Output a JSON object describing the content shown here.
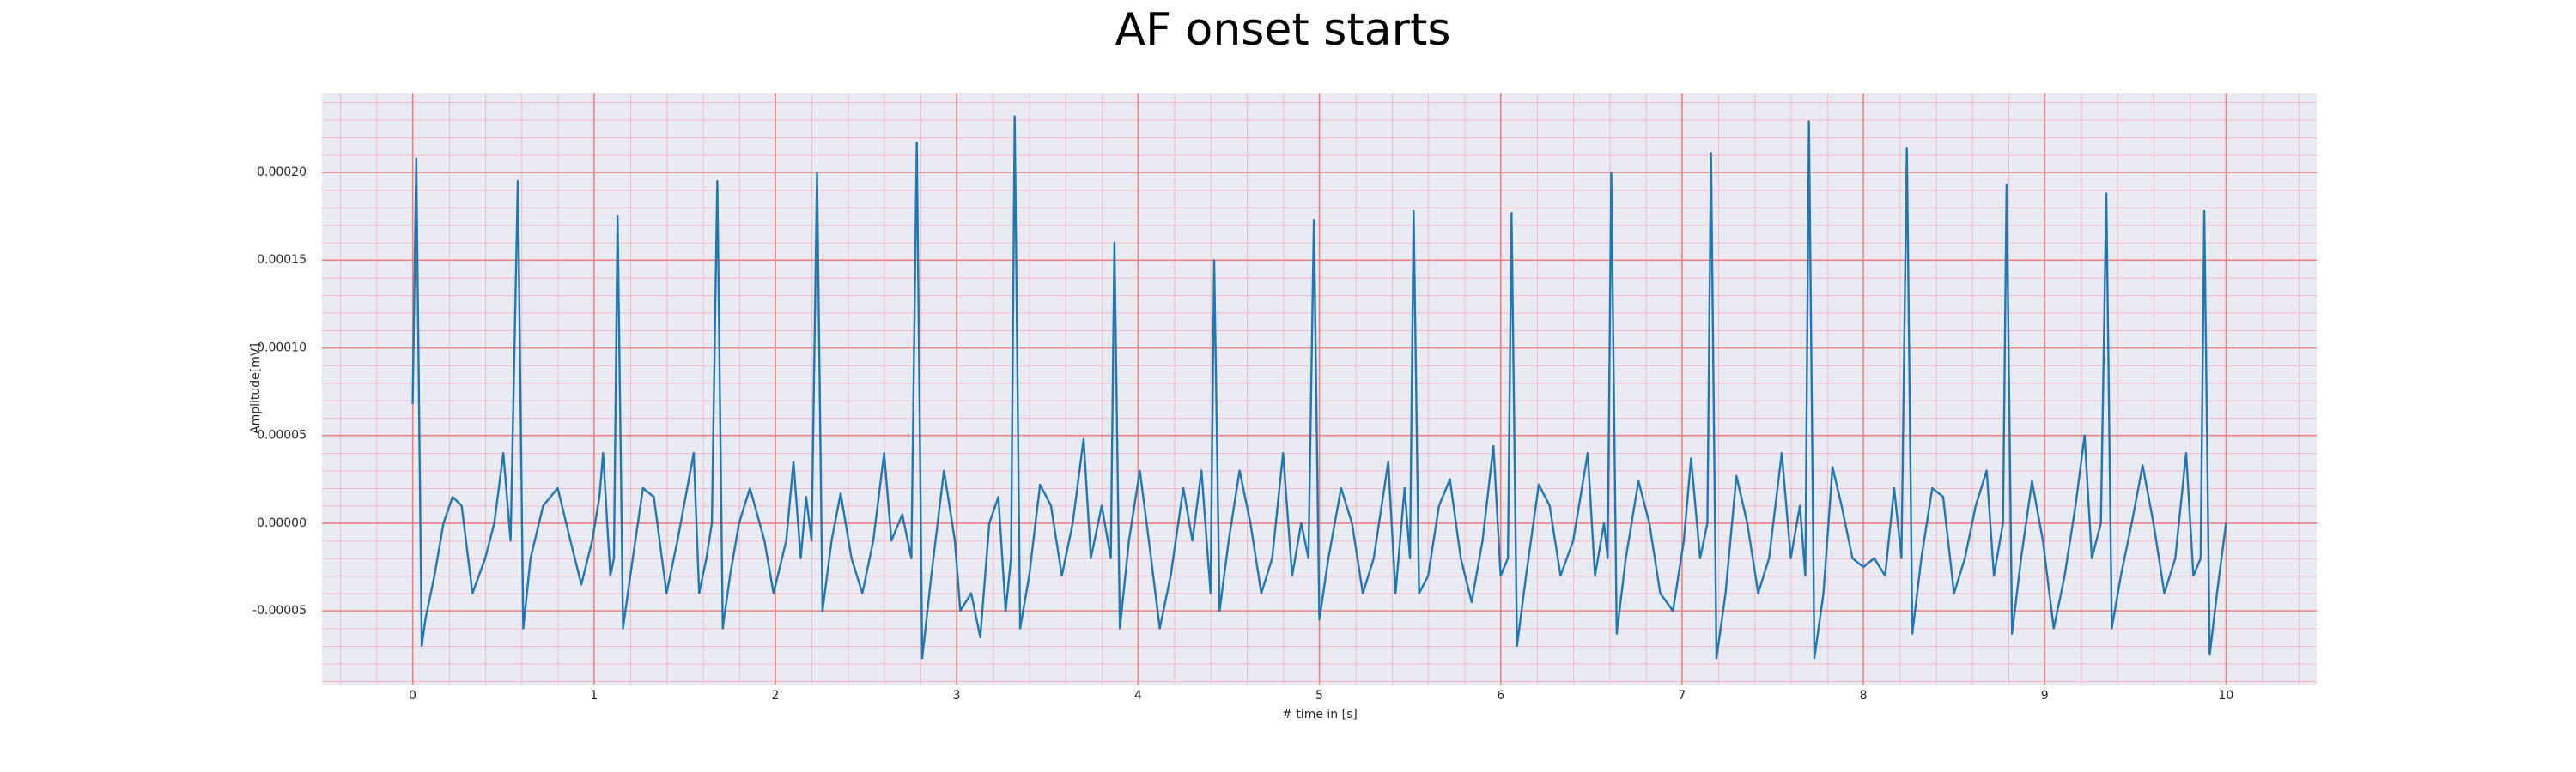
{
  "chart_data": {
    "type": "line",
    "title": "AF onset starts",
    "xlabel": "# time in [s]",
    "ylabel": "Amplitude[mV]",
    "color": "#1f77b4",
    "grid": true,
    "background": "#eaeaf2",
    "grid_color": "#f08080",
    "x": [
      0,
      0.02,
      0.05,
      0.07,
      0.12,
      0.17,
      0.22,
      0.27,
      0.33,
      0.4,
      0.45,
      0.5,
      0.54,
      0.58,
      0.61,
      0.65,
      0.72,
      0.8,
      0.87,
      0.93,
      0.99,
      1.03,
      1.05,
      1.09,
      1.11,
      1.13,
      1.16,
      1.2,
      1.27,
      1.33,
      1.4,
      1.46,
      1.55,
      1.58,
      1.62,
      1.65,
      1.68,
      1.71,
      1.75,
      1.8,
      1.86,
      1.94,
      1.99,
      2.06,
      2.1,
      2.14,
      2.17,
      2.2,
      2.23,
      2.26,
      2.31,
      2.36,
      2.42,
      2.48,
      2.54,
      2.6,
      2.64,
      2.7,
      2.75,
      2.78,
      2.81,
      2.86,
      2.93,
      2.99,
      3.02,
      3.08,
      3.13,
      3.18,
      3.23,
      3.27,
      3.3,
      3.32,
      3.35,
      3.4,
      3.46,
      3.52,
      3.58,
      3.64,
      3.7,
      3.74,
      3.8,
      3.85,
      3.87,
      3.9,
      3.95,
      4.01,
      4.06,
      4.12,
      4.18,
      4.25,
      4.3,
      4.35,
      4.4,
      4.42,
      4.45,
      4.5,
      4.56,
      4.62,
      4.68,
      4.74,
      4.8,
      4.85,
      4.9,
      4.94,
      4.97,
      5.0,
      5.05,
      5.12,
      5.18,
      5.24,
      5.3,
      5.38,
      5.42,
      5.47,
      5.5,
      5.52,
      5.55,
      5.6,
      5.66,
      5.72,
      5.78,
      5.84,
      5.9,
      5.96,
      6.0,
      6.04,
      6.06,
      6.09,
      6.14,
      6.21,
      6.27,
      6.33,
      6.4,
      6.48,
      6.52,
      6.57,
      6.59,
      6.61,
      6.64,
      6.69,
      6.76,
      6.82,
      6.88,
      6.95,
      7.01,
      7.05,
      7.1,
      7.14,
      7.16,
      7.19,
      7.24,
      7.3,
      7.36,
      7.42,
      7.48,
      7.55,
      7.6,
      7.65,
      7.68,
      7.7,
      7.73,
      7.78,
      7.83,
      7.88,
      7.94,
      8.0,
      8.06,
      8.12,
      8.17,
      8.21,
      8.24,
      8.27,
      8.32,
      8.38,
      8.44,
      8.5,
      8.56,
      8.62,
      8.68,
      8.72,
      8.77,
      8.79,
      8.82,
      8.87,
      8.93,
      8.99,
      9.05,
      9.11,
      9.17,
      9.22,
      9.26,
      9.31,
      9.34,
      9.37,
      9.42,
      9.48,
      9.54,
      9.6,
      9.66,
      9.72,
      9.78,
      9.82,
      9.86,
      9.88,
      9.91,
      9.95,
      10.0
    ],
    "values": [
      6.8e-05,
      0.000208,
      -7e-05,
      -5.5e-05,
      -3e-05,
      0.0,
      1.5e-05,
      1e-05,
      -4e-05,
      -2e-05,
      0.0,
      4e-05,
      -1e-05,
      0.000195,
      -6e-05,
      -2e-05,
      1e-05,
      2e-05,
      -1e-05,
      -3.5e-05,
      -1e-05,
      1.5e-05,
      4e-05,
      -3e-05,
      -2e-05,
      0.000175,
      -6e-05,
      -3e-05,
      2e-05,
      1.5e-05,
      -4e-05,
      -1e-05,
      4e-05,
      -4e-05,
      -2e-05,
      0.0,
      0.000195,
      -6e-05,
      -3e-05,
      0.0,
      2e-05,
      -1e-05,
      -4e-05,
      -1e-05,
      3.5e-05,
      -2e-05,
      1.5e-05,
      -1e-05,
      0.0002,
      -5e-05,
      -1e-05,
      1.7e-05,
      -2e-05,
      -4e-05,
      -1e-05,
      4e-05,
      -1e-05,
      5e-06,
      -2e-05,
      0.000217,
      -7.7e-05,
      -3e-05,
      3e-05,
      -1e-05,
      -5e-05,
      -4e-05,
      -6.5e-05,
      0.0,
      1.5e-05,
      -5e-05,
      -2e-05,
      0.000232,
      -6e-05,
      -3e-05,
      2.2e-05,
      1e-05,
      -3e-05,
      0.0,
      4.8e-05,
      -2e-05,
      1e-05,
      -2e-05,
      0.00016,
      -6e-05,
      -1e-05,
      3e-05,
      -1e-05,
      -6e-05,
      -3e-05,
      2e-05,
      -1e-05,
      3e-05,
      -4e-05,
      0.00015,
      -5e-05,
      -1e-05,
      3e-05,
      0.0,
      -4e-05,
      -2e-05,
      4e-05,
      -3e-05,
      0.0,
      -2e-05,
      0.000173,
      -5.5e-05,
      -2e-05,
      2e-05,
      0.0,
      -4e-05,
      -2e-05,
      3.5e-05,
      -4e-05,
      2e-05,
      -2e-05,
      0.000178,
      -4e-05,
      -3e-05,
      1e-05,
      2.5e-05,
      -2e-05,
      -4.5e-05,
      -1e-05,
      4.4e-05,
      -3e-05,
      -2e-05,
      0.000177,
      -7e-05,
      -3e-05,
      2.2e-05,
      1e-05,
      -3e-05,
      -1e-05,
      4e-05,
      -3e-05,
      0.0,
      -2e-05,
      0.0002,
      -6.3e-05,
      -2e-05,
      2.4e-05,
      0.0,
      -4e-05,
      -5e-05,
      -1e-05,
      3.7e-05,
      -2e-05,
      0.0,
      0.000211,
      -7.7e-05,
      -4e-05,
      2.7e-05,
      0.0,
      -4e-05,
      -2e-05,
      4e-05,
      -2e-05,
      1e-05,
      -3e-05,
      0.000229,
      -7.7e-05,
      -4e-05,
      3.2e-05,
      1e-05,
      -2e-05,
      -2.5e-05,
      -2e-05,
      -3e-05,
      2e-05,
      -2e-05,
      0.000214,
      -6.3e-05,
      -2e-05,
      2e-05,
      1.5e-05,
      -4e-05,
      -2e-05,
      1e-05,
      3e-05,
      -3e-05,
      0.0,
      0.000193,
      -6.3e-05,
      -2e-05,
      2.4e-05,
      -1e-05,
      -6e-05,
      -3e-05,
      1e-05,
      5e-05,
      -2e-05,
      0.0,
      0.000188,
      -6e-05,
      -3e-05,
      0.0,
      3.3e-05,
      0.0,
      -4e-05,
      -2e-05,
      4e-05,
      -3e-05,
      -2e-05,
      0.000178,
      -7.5e-05,
      -4e-05,
      0.0
    ],
    "xlim": [
      -0.5,
      10.5
    ],
    "xticks": [
      0,
      1,
      2,
      3,
      4,
      5,
      6,
      7,
      8,
      9,
      10
    ],
    "ylim": [
      -9.2e-05,
      0.000245
    ],
    "yticks": [
      {
        "value": -5e-05,
        "label": "-0.00005"
      },
      {
        "value": 0,
        "label": "0.00000"
      },
      {
        "value": 5e-05,
        "label": "0.00005"
      },
      {
        "value": 0.0001,
        "label": "0.00010"
      },
      {
        "value": 0.00015,
        "label": "0.00015"
      },
      {
        "value": 0.0002,
        "label": "0.00020"
      }
    ]
  }
}
